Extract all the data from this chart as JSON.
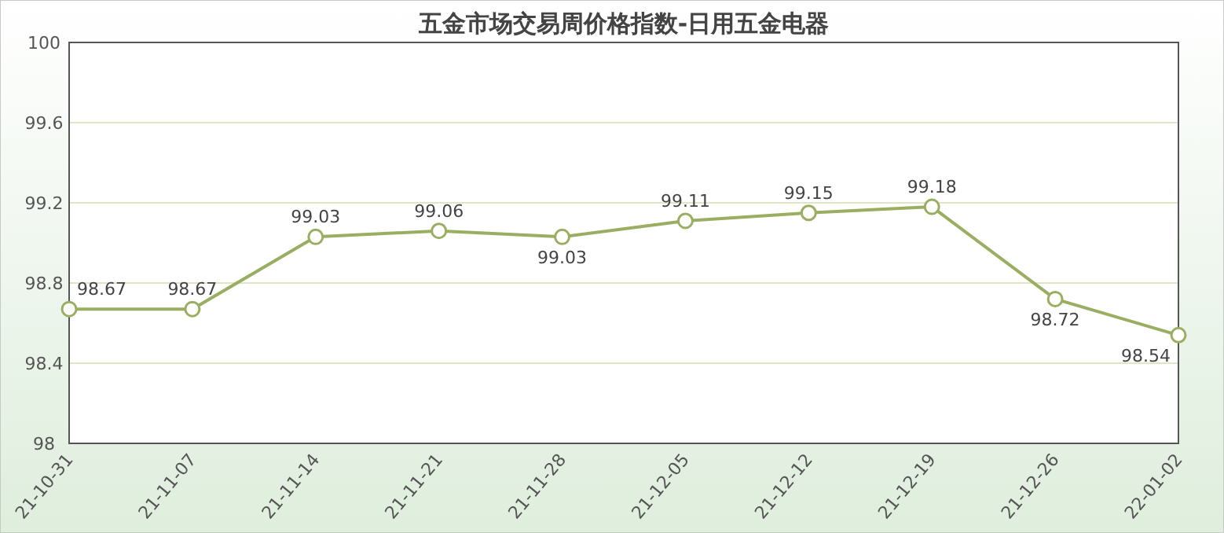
{
  "chart_data": {
    "type": "line",
    "title": "五金市场交易周价格指数-日用五金电器",
    "categories": [
      "21-10-31",
      "21-11-07",
      "21-11-14",
      "21-11-21",
      "21-11-28",
      "21-12-05",
      "21-12-12",
      "21-12-19",
      "21-12-26",
      "22-01-02"
    ],
    "values": [
      98.67,
      98.67,
      99.03,
      99.06,
      99.03,
      99.11,
      99.15,
      99.18,
      98.72,
      98.54
    ],
    "color": "#9aae62",
    "ylim": [
      98,
      100
    ],
    "yticks": [
      98,
      98.4,
      98.8,
      99.2,
      99.6,
      100
    ],
    "grid": "y",
    "marker": "circle",
    "data_labels": true
  }
}
